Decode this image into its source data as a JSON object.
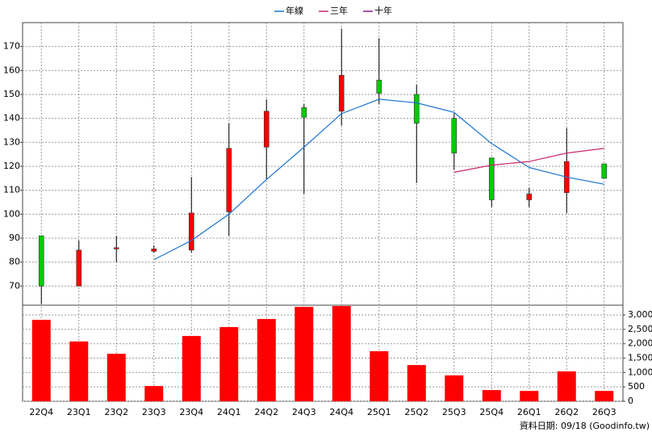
{
  "chart_data": {
    "type": "candlestick",
    "categories": [
      "22Q4",
      "23Q1",
      "23Q2",
      "23Q3",
      "23Q4",
      "24Q1",
      "24Q2",
      "24Q3",
      "24Q4",
      "25Q1",
      "25Q2",
      "25Q3",
      "25Q4",
      "26Q1",
      "26Q2",
      "26Q3"
    ],
    "open": [
      91,
      70,
      85.5,
      84.5,
      85,
      101,
      128,
      144.5,
      143,
      156,
      150,
      140,
      123.5,
      106,
      109,
      121
    ],
    "high": [
      91,
      89,
      91,
      87,
      115.5,
      138,
      148,
      146,
      177.5,
      173.5,
      154,
      142,
      123.5,
      111,
      136,
      121
    ],
    "low": [
      62.5,
      70,
      80,
      84,
      84,
      91,
      114.5,
      108.5,
      137,
      146,
      113,
      118.5,
      103,
      103,
      100.5,
      115
    ],
    "close": [
      70,
      85,
      86,
      85.5,
      100.5,
      127.5,
      143,
      140.5,
      158,
      150.5,
      138,
      125.5,
      106,
      108.5,
      122,
      115
    ],
    "up_color": "#ff0000",
    "down_color": "#00cc00",
    "series": [
      {
        "name": "年線",
        "color": "#1a73d0",
        "values": [
          null,
          null,
          null,
          81,
          89,
          100,
          114.5,
          128,
          142,
          148,
          146.5,
          142.5,
          129.5,
          119.5,
          115.5,
          112.5
        ]
      },
      {
        "name": "三年",
        "color": "#c8286e",
        "values": [
          null,
          null,
          null,
          null,
          null,
          null,
          null,
          null,
          null,
          null,
          null,
          117.5,
          120.5,
          122,
          125.5,
          127.5
        ]
      },
      {
        "name": "十年",
        "color": "#8b1a8b",
        "values": [
          null,
          null,
          null,
          null,
          null,
          null,
          null,
          null,
          null,
          null,
          null,
          null,
          null,
          null,
          null,
          null
        ]
      }
    ],
    "ylim": [
      62,
      180
    ],
    "yticks": [
      70,
      80,
      90,
      100,
      110,
      120,
      130,
      140,
      150,
      160,
      170
    ],
    "grid": true,
    "legend": "top",
    "volume": {
      "type": "bar",
      "color": "#ff0000",
      "values": [
        2830,
        2080,
        1650,
        530,
        2270,
        2580,
        2860,
        3280,
        3310,
        1740,
        1260,
        900,
        390,
        360,
        1040,
        360
      ],
      "ylim": [
        0,
        3340
      ],
      "yticks": [
        0,
        500,
        {
          "value": 1000,
          "label": "1,000"
        },
        {
          "value": 1500,
          "label": "1,500"
        },
        {
          "value": 2000,
          "label": "2,000"
        },
        {
          "value": 2500,
          "label": "2,500"
        },
        {
          "value": 3000,
          "label": "3,000"
        }
      ]
    },
    "note": "資料日期: 09/18 (Goodinfo.tw)"
  }
}
